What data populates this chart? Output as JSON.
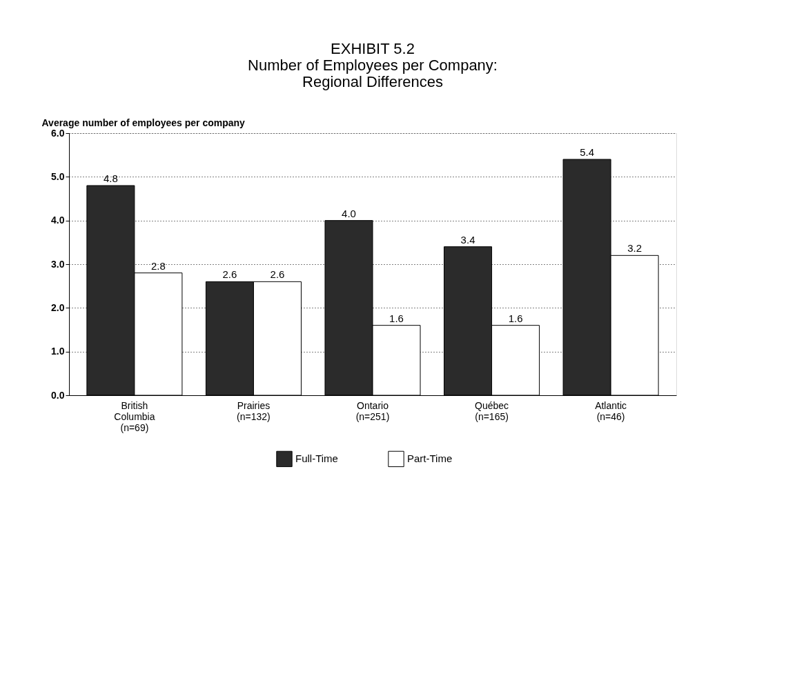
{
  "chart_data": {
    "type": "bar",
    "title": "EXHIBIT 5.2\nNumber of Employees per Company:\nRegional Differences",
    "ylabel": "Average number of employees per company",
    "categories": [
      "British\nColumbia\n(n=69)",
      "Prairies\n(n=132)",
      "Ontario\n(n=251)",
      "Québec\n(n=165)",
      "Atlantic\n(n=46)"
    ],
    "series": [
      {
        "name": "Full-Time",
        "color": "#2b2b2b",
        "values": [
          4.8,
          2.6,
          4.0,
          3.4,
          5.4
        ],
        "value_labels": [
          "4.8",
          "2.6",
          "4.0",
          "3.4",
          "5.4"
        ]
      },
      {
        "name": "Part-Time",
        "color": "#ffffff",
        "values": [
          2.8,
          2.6,
          1.6,
          1.6,
          3.2
        ],
        "value_labels": [
          "2.8",
          "2.6",
          "1.6",
          "1.6",
          "3.2"
        ]
      }
    ],
    "ylim": [
      0,
      6
    ],
    "yticks": [
      {
        "value": 0,
        "label": "0.0"
      },
      {
        "value": 1,
        "label": "1.0"
      },
      {
        "value": 2,
        "label": "2.0"
      },
      {
        "value": 3,
        "label": "3.0"
      },
      {
        "value": 4,
        "label": "4.0"
      },
      {
        "value": 5,
        "label": "5.0"
      },
      {
        "value": 6,
        "label": "6.0"
      }
    ],
    "grid": "y",
    "legend": "bottom"
  }
}
